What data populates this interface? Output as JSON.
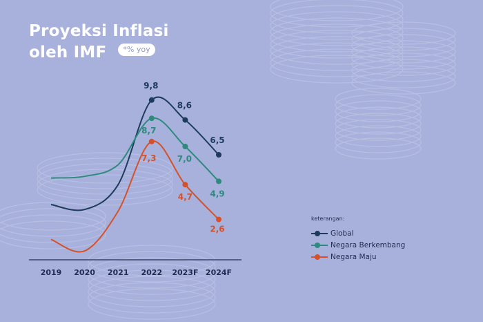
{
  "header": {
    "title_line1": "Proyeksi Inflasi",
    "title_line2": "oleh IMF",
    "unit_badge": "*% yoy"
  },
  "legend": {
    "title": "keterangan:",
    "items": [
      {
        "label": "Global",
        "color": "#1f3b5c"
      },
      {
        "label": "Negara Berkembang",
        "color": "#2e8a7d"
      },
      {
        "label": "Negara Maju",
        "color": "#d4512a"
      }
    ]
  },
  "colors": {
    "background": "#a7b1dc",
    "decor": "#b7bfe2",
    "axis": "#1f2c4f"
  },
  "chart_data": {
    "type": "line",
    "title": "Proyeksi Inflasi oleh IMF",
    "unit": "*% yoy",
    "categories": [
      "2019",
      "2020",
      "2021",
      "2022",
      "2023F",
      "2024F"
    ],
    "series": [
      {
        "name": "Global",
        "color": "#1f3b5c",
        "values": [
          3.5,
          3.2,
          4.7,
          9.8,
          8.6,
          6.5
        ],
        "labels": [
          null,
          null,
          null,
          "9,8",
          "8,6",
          "6,5"
        ]
      },
      {
        "name": "Negara Berkembang",
        "color": "#2e8a7d",
        "values": [
          5.1,
          5.2,
          5.9,
          8.7,
          7.0,
          4.9
        ],
        "labels": [
          null,
          null,
          null,
          "8,7",
          "7,0",
          "4,9"
        ]
      },
      {
        "name": "Negara Maju",
        "color": "#d4512a",
        "values": [
          1.4,
          0.7,
          3.1,
          7.3,
          4.7,
          2.6
        ],
        "labels": [
          null,
          null,
          null,
          "7,3",
          "4,7",
          "2,6"
        ]
      }
    ],
    "ylim": [
      0,
      10.5
    ],
    "grid": false,
    "legend_position": "right"
  }
}
